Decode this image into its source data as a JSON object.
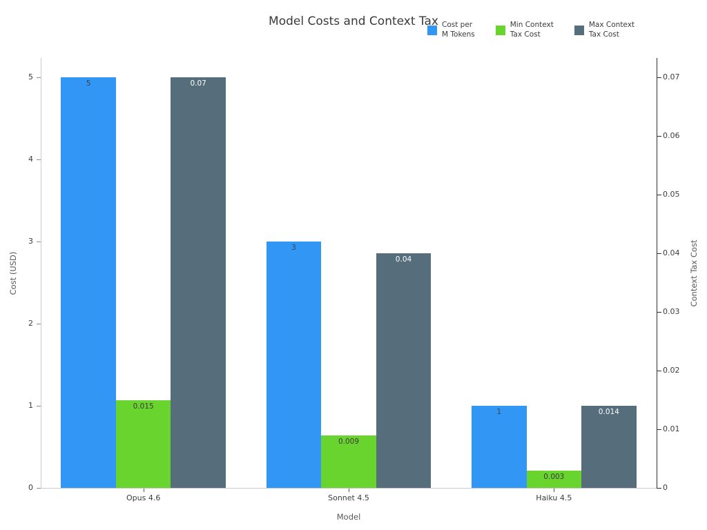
{
  "chart_data": {
    "type": "bar",
    "title": "Model Costs and Context Tax",
    "categories": [
      "Opus 4.6",
      "Sonnet 4.5",
      "Haiku 4.5"
    ],
    "series": [
      {
        "name": "Cost per M Tokens",
        "legend_lines": [
          "Cost per",
          "M Tokens"
        ],
        "axis": "left",
        "color": "#3296f4",
        "values": [
          5,
          3,
          1
        ],
        "value_labels": [
          "5",
          "3",
          "1"
        ],
        "value_label_color": "#38444e"
      },
      {
        "name": "Min Context Tax Cost",
        "legend_lines": [
          "Min Context",
          "Tax Cost"
        ],
        "axis": "right",
        "color": "#6ad42e",
        "values": [
          0.015,
          0.009,
          0.003
        ],
        "value_labels": [
          "0.015",
          "0.009",
          "0.003"
        ],
        "value_label_color": "#3a3a3a"
      },
      {
        "name": "Max Context Tax Cost",
        "legend_lines": [
          "Max Context",
          "Tax Cost"
        ],
        "axis": "right",
        "color": "#566e7c",
        "values": [
          0.07,
          0.04,
          0.014
        ],
        "value_labels": [
          "0.07",
          "0.04",
          "0.014"
        ],
        "value_label_color": "#ffffff"
      }
    ],
    "xlabel": "Model",
    "ylabel_left": "Cost (USD)",
    "ylabel_right": "Context Tax Cost",
    "yticks_left": {
      "values": [
        0,
        1,
        2,
        3,
        4,
        5
      ],
      "labels": [
        "0",
        "1",
        "2",
        "3",
        "4",
        "5"
      ]
    },
    "yticks_right": {
      "values": [
        0,
        0.01,
        0.02,
        0.03,
        0.04,
        0.05,
        0.06,
        0.07
      ],
      "labels": [
        "0",
        "0.01",
        "0.02",
        "0.03",
        "0.04",
        "0.05",
        "0.06",
        "0.07"
      ]
    },
    "ylim_left": [
      0,
      5.235
    ],
    "ylim_right": [
      0,
      0.0733
    ],
    "grid": false,
    "legend_position": "top-right",
    "colors": {
      "title": "#3a3a3a",
      "tick_label": "#3b3b3b",
      "axis_label": "#595959",
      "left_spine": "#cccccc",
      "bottom_spine": "#cccccc",
      "right_spine": "#2d2d2d"
    }
  }
}
